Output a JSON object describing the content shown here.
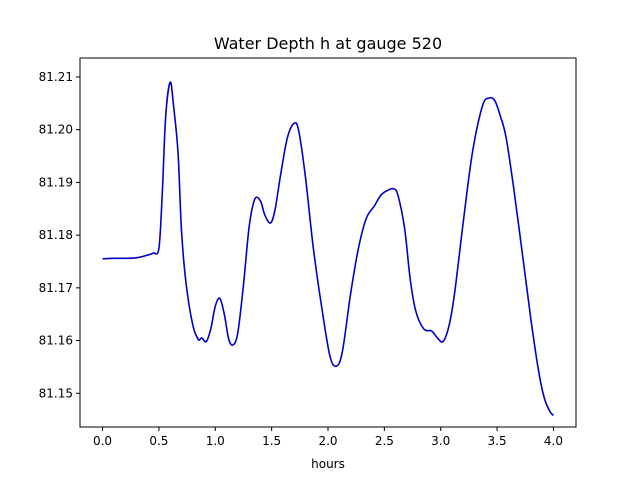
{
  "chart_data": {
    "type": "line",
    "title": "Water Depth h at gauge 520",
    "xlabel": "hours",
    "ylabel": "",
    "xlim": [
      -0.2,
      4.2
    ],
    "ylim": [
      81.1436,
      81.2136
    ],
    "xticks": [
      0.0,
      0.5,
      1.0,
      1.5,
      2.0,
      2.5,
      3.0,
      3.5,
      4.0
    ],
    "xtick_labels": [
      "0.0",
      "0.5",
      "1.0",
      "1.5",
      "2.0",
      "2.5",
      "3.0",
      "3.5",
      "4.0"
    ],
    "yticks": [
      81.15,
      81.16,
      81.17,
      81.18,
      81.19,
      81.2,
      81.21
    ],
    "ytick_labels": [
      "81.15",
      "81.16",
      "81.17",
      "81.18",
      "81.19",
      "81.20",
      "81.21"
    ],
    "grid": false,
    "legend": "none",
    "series": [
      {
        "color": "#0000cc",
        "x": [
          0.0,
          0.1,
          0.2,
          0.3,
          0.4,
          0.45,
          0.5,
          0.53,
          0.56,
          0.6,
          0.63,
          0.67,
          0.7,
          0.74,
          0.8,
          0.85,
          0.88,
          0.92,
          0.96,
          1.0,
          1.04,
          1.08,
          1.12,
          1.16,
          1.2,
          1.25,
          1.3,
          1.35,
          1.4,
          1.44,
          1.49,
          1.53,
          1.58,
          1.64,
          1.7,
          1.74,
          1.8,
          1.87,
          1.95,
          2.02,
          2.08,
          2.13,
          2.2,
          2.27,
          2.34,
          2.41,
          2.47,
          2.53,
          2.58,
          2.62,
          2.68,
          2.73,
          2.78,
          2.85,
          2.92,
          2.97,
          3.02,
          3.07,
          3.12,
          3.2,
          3.28,
          3.37,
          3.43,
          3.48,
          3.53,
          3.58,
          3.65,
          3.73,
          3.8,
          3.87,
          3.92,
          3.97,
          4.0
        ],
        "y": [
          81.1755,
          81.1756,
          81.1756,
          81.1757,
          81.1762,
          81.1766,
          81.1775,
          81.188,
          81.2025,
          81.209,
          81.2045,
          81.1955,
          81.181,
          81.171,
          81.163,
          81.1602,
          81.1605,
          81.1598,
          81.1622,
          81.1665,
          81.168,
          81.165,
          81.1602,
          81.1592,
          81.1615,
          81.1705,
          81.1815,
          81.1868,
          81.1865,
          81.1838,
          81.1823,
          81.1848,
          81.1915,
          81.1985,
          81.2012,
          81.1998,
          81.191,
          81.1775,
          81.1655,
          81.1568,
          81.1552,
          81.1582,
          81.1688,
          81.1775,
          81.1832,
          81.1855,
          81.1876,
          81.1885,
          81.1888,
          81.1876,
          81.1812,
          81.1715,
          81.1655,
          81.1622,
          81.1618,
          81.1605,
          81.1598,
          81.1625,
          81.1685,
          81.1825,
          81.1955,
          81.2045,
          81.206,
          81.2055,
          81.2025,
          81.1985,
          81.1885,
          81.1755,
          81.164,
          81.154,
          81.149,
          81.1465,
          81.1458
        ]
      }
    ]
  }
}
